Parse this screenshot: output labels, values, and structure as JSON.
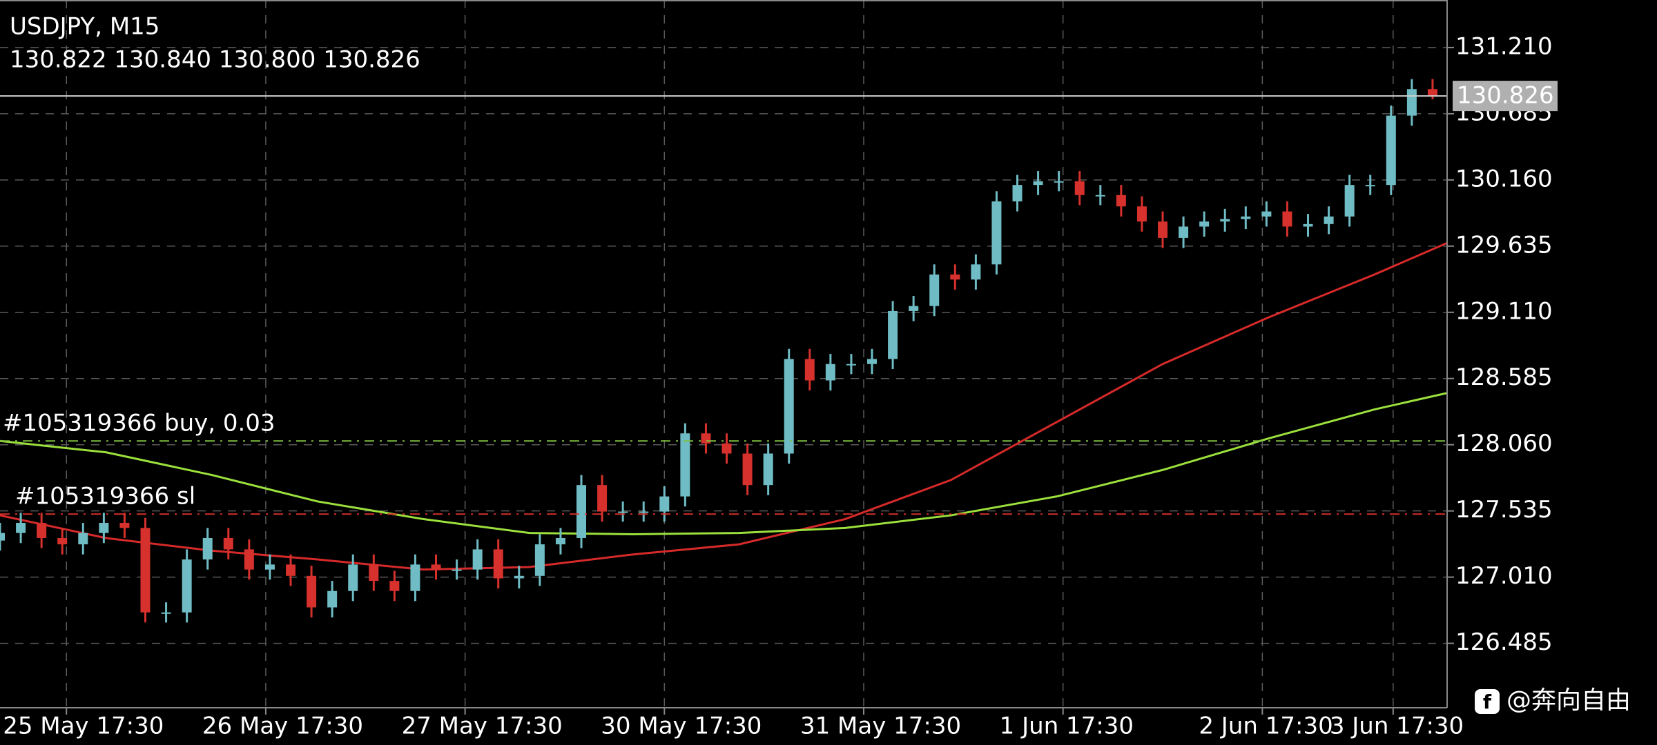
{
  "header": {
    "symbol": "USDJPY, M15",
    "ohlc": "130.822 130.840 130.800 130.826"
  },
  "watermark": "@奔向自由",
  "chart_data": {
    "type": "candlestick",
    "up_color": "#6fbcc4",
    "down_color": "#d6312c",
    "x": [
      0,
      10,
      20,
      30,
      40,
      50,
      60,
      70,
      80,
      90,
      100,
      110,
      120,
      130,
      140,
      150,
      160,
      170,
      180,
      190,
      200,
      210,
      220,
      230,
      240,
      250,
      260,
      270,
      280,
      290,
      300,
      310,
      320,
      330,
      340,
      350,
      360,
      370,
      380,
      390,
      400,
      410,
      420,
      430,
      440,
      450,
      460,
      470,
      480,
      490,
      500,
      510,
      520,
      530,
      540,
      550,
      560,
      570,
      580,
      590,
      600,
      610,
      620,
      630,
      640,
      650,
      660,
      670,
      680,
      690
    ],
    "open": [
      127.3,
      127.36,
      127.44,
      127.32,
      127.27,
      127.36,
      127.44,
      127.4,
      126.73,
      126.73,
      127.15,
      127.32,
      127.23,
      127.07,
      127.11,
      127.02,
      126.77,
      126.9,
      127.11,
      126.98,
      126.9,
      127.11,
      127.07,
      127.07,
      127.23,
      127.0,
      127.02,
      127.27,
      127.32,
      127.74,
      127.53,
      127.53,
      127.53,
      127.65,
      128.15,
      128.07,
      127.99,
      127.74,
      127.99,
      128.74,
      128.57,
      128.7,
      128.7,
      128.74,
      129.12,
      129.16,
      129.41,
      129.37,
      129.49,
      129.99,
      130.12,
      130.15,
      130.15,
      130.04,
      130.04,
      129.95,
      129.83,
      129.7,
      129.79,
      129.83,
      129.85,
      129.87,
      129.91,
      129.79,
      129.81,
      129.87,
      130.12,
      130.12,
      130.67,
      130.88
    ],
    "high": [
      127.44,
      127.52,
      127.52,
      127.4,
      127.44,
      127.52,
      127.52,
      127.48,
      126.81,
      127.23,
      127.4,
      127.4,
      127.31,
      127.19,
      127.19,
      127.1,
      126.98,
      127.19,
      127.19,
      127.06,
      127.19,
      127.19,
      127.15,
      127.31,
      127.31,
      127.1,
      127.35,
      127.4,
      127.82,
      127.82,
      127.61,
      127.61,
      127.73,
      128.23,
      128.23,
      128.15,
      128.07,
      128.07,
      128.82,
      128.82,
      128.78,
      128.78,
      128.82,
      129.2,
      129.24,
      129.49,
      129.49,
      129.57,
      130.07,
      130.2,
      130.23,
      130.23,
      130.23,
      130.12,
      130.12,
      130.03,
      129.91,
      129.87,
      129.91,
      129.93,
      129.95,
      129.99,
      129.99,
      129.89,
      129.95,
      130.2,
      130.2,
      130.75,
      130.96,
      130.96
    ],
    "low": [
      127.22,
      127.28,
      127.24,
      127.19,
      127.19,
      127.28,
      127.32,
      126.65,
      126.65,
      126.65,
      127.07,
      127.15,
      126.99,
      126.99,
      126.94,
      126.69,
      126.69,
      126.82,
      126.9,
      126.82,
      126.82,
      126.99,
      126.99,
      126.99,
      126.92,
      126.92,
      126.94,
      127.19,
      127.24,
      127.45,
      127.45,
      127.45,
      127.45,
      127.57,
      127.99,
      127.91,
      127.66,
      127.66,
      127.91,
      128.49,
      128.49,
      128.62,
      128.62,
      128.66,
      129.04,
      129.08,
      129.29,
      129.29,
      129.41,
      129.91,
      130.04,
      130.07,
      129.96,
      129.96,
      129.87,
      129.75,
      129.62,
      129.62,
      129.71,
      129.75,
      129.77,
      129.79,
      129.71,
      129.71,
      129.73,
      129.79,
      130.04,
      130.04,
      130.59,
      130.8
    ],
    "close": [
      127.36,
      127.44,
      127.32,
      127.27,
      127.36,
      127.44,
      127.4,
      126.73,
      126.73,
      127.15,
      127.32,
      127.23,
      127.07,
      127.11,
      127.02,
      126.77,
      126.9,
      127.11,
      126.98,
      126.9,
      127.11,
      127.07,
      127.07,
      127.23,
      127.0,
      127.02,
      127.27,
      127.32,
      127.74,
      127.53,
      127.53,
      127.53,
      127.65,
      128.15,
      128.07,
      127.99,
      127.74,
      127.99,
      128.74,
      128.57,
      128.7,
      128.7,
      128.74,
      129.12,
      129.16,
      129.41,
      129.37,
      129.49,
      129.99,
      130.12,
      130.15,
      130.15,
      130.04,
      130.04,
      129.95,
      129.83,
      129.7,
      129.79,
      129.83,
      129.85,
      129.87,
      129.91,
      129.79,
      129.81,
      129.87,
      130.12,
      130.12,
      130.67,
      130.88,
      130.826
    ],
    "lines": [
      {
        "color": "#d62a2a",
        "x": [
          0,
          51,
          102,
          153,
          204,
          255,
          305,
          356,
          407,
          458,
          509,
          560,
          611,
          662,
          697
        ],
        "values": [
          127.5,
          127.32,
          127.22,
          127.15,
          127.07,
          127.09,
          127.19,
          127.27,
          127.47,
          127.78,
          128.24,
          128.7,
          129.07,
          129.41,
          129.66
        ]
      },
      {
        "color": "#9be03c",
        "x": [
          0,
          51,
          102,
          153,
          204,
          255,
          305,
          356,
          407,
          458,
          509,
          560,
          611,
          662,
          697
        ],
        "values": [
          128.09,
          128.0,
          127.82,
          127.61,
          127.47,
          127.36,
          127.35,
          127.36,
          127.4,
          127.5,
          127.65,
          127.86,
          128.11,
          128.34,
          128.47
        ]
      }
    ],
    "price_line": {
      "price": 130.826,
      "color": "#d0d0d0"
    },
    "orders": [
      {
        "label": "#105319366 buy, 0.03",
        "price": 128.09,
        "color": "#7fbf3f"
      },
      {
        "label": "#105319366 sl",
        "price": 127.51,
        "color": "#d6312c"
      }
    ],
    "xlim": [
      0,
      697
    ],
    "xticks": [
      {
        "value": 32,
        "label": "25 May 17:30"
      },
      {
        "value": 128,
        "label": "26 May 17:30"
      },
      {
        "value": 224,
        "label": "27 May 17:30"
      },
      {
        "value": 320,
        "label": "30 May 17:30"
      },
      {
        "value": 416,
        "label": "31 May 17:30"
      },
      {
        "value": 512,
        "label": "1 Jun 17:30"
      },
      {
        "value": 608,
        "label": "2 Jun 17:30"
      },
      {
        "value": 671,
        "label": "3 Jun 17:30"
      }
    ],
    "ylim": [
      125.974,
      131.587
    ],
    "yticks": [
      {
        "value": 131.21,
        "label": "131.210"
      },
      130.685,
      {
        "value": 130.16,
        "label": "130.160"
      },
      129.635,
      {
        "value": 129.11,
        "label": "129.110"
      },
      128.585,
      {
        "value": 128.06,
        "label": "128.060"
      },
      127.535,
      {
        "value": 127.01,
        "label": "127.010"
      },
      126.485
    ],
    "grid": true
  }
}
